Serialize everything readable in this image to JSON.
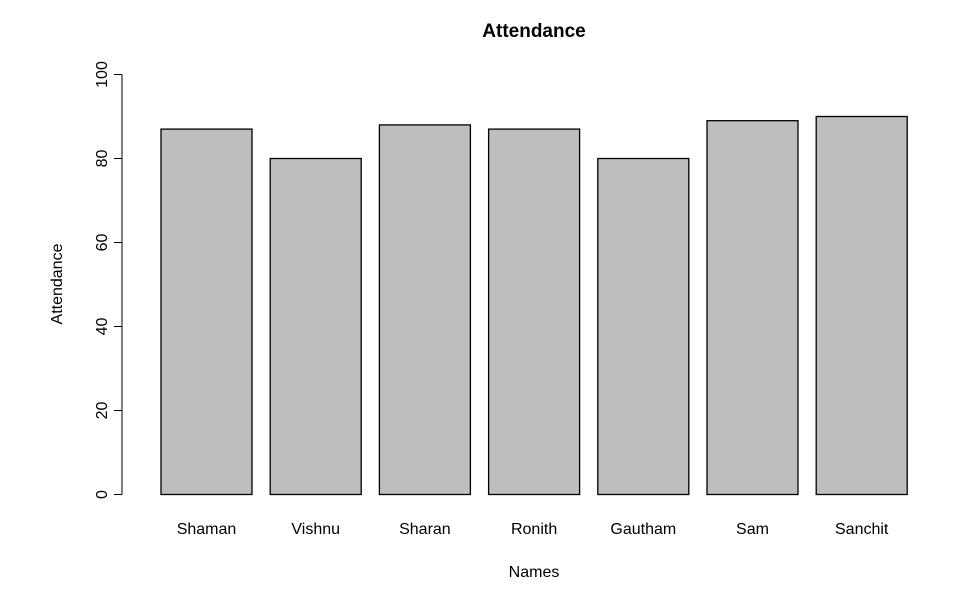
{
  "chart_data": {
    "type": "bar",
    "title": "Attendance",
    "xlabel": "Names",
    "ylabel": "Attendance",
    "categories": [
      "Shaman",
      "Vishnu",
      "Sharan",
      "Ronith",
      "Gautham",
      "Sam",
      "Sanchit"
    ],
    "values": [
      87,
      80,
      88,
      87,
      80,
      89,
      90
    ],
    "ylim": [
      0,
      100
    ],
    "yticks": [
      0,
      20,
      40,
      60,
      80,
      100
    ],
    "ytick_labels": [
      "0",
      "20",
      "40",
      "60",
      "80",
      "100"
    ],
    "grid": false,
    "legend": "none",
    "bar_color": "#bebebe",
    "edge_color": "#000000"
  }
}
